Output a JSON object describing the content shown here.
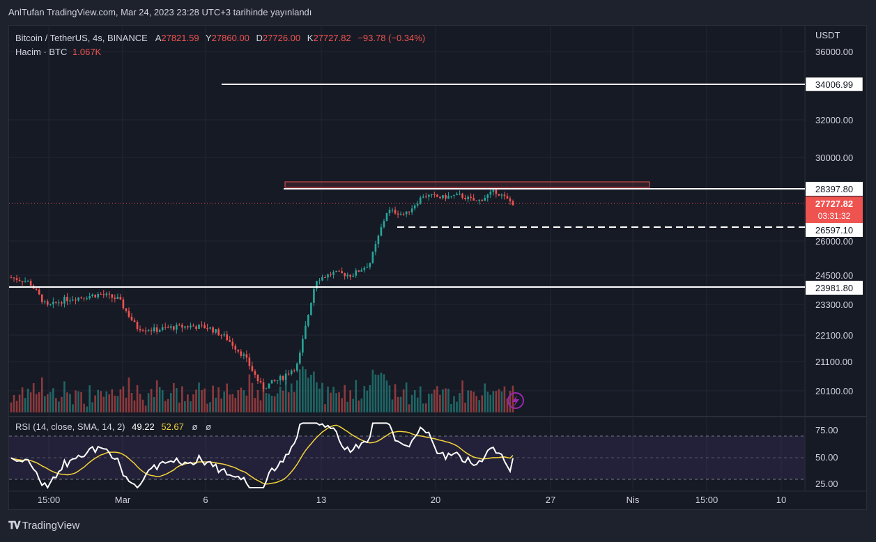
{
  "caption": "AnlTufan TradingView.com, Mar 24, 2023 23:28 UTC+3 tarihinde yayınlandı",
  "brand": "TradingView",
  "legend": {
    "symbol": "Bitcoin / TetherUS, 4s, BINANCE",
    "open_label": "A",
    "open": "27821.59",
    "high_label": "Y",
    "high": "27860.00",
    "low_label": "D",
    "low": "27726.00",
    "close_label": "K",
    "close": "27727.82",
    "change": "−93.78 (−0.34%)",
    "volume_label": "Hacim · BTC",
    "volume": "1.067K"
  },
  "rsi_legend": {
    "label": "RSI (14, close, SMA, 14, 2)",
    "value": "49.22",
    "sma": "52.67",
    "extra1": "ø",
    "extra2": "ø"
  },
  "price_axis": {
    "currency": "USDT",
    "ticks": [
      "36000.00",
      "32000.00",
      "30000.00",
      "26000.00",
      "24500.00",
      "23300.00",
      "22100.00",
      "21100.00",
      "20100.00"
    ],
    "line_labels": [
      "34006.99",
      "28397.80",
      "26597.10",
      "23981.80"
    ],
    "current_price": "27727.82",
    "countdown": "03:31:32"
  },
  "rsi_axis": {
    "ticks": [
      "75.00",
      "50.00",
      "25.00"
    ]
  },
  "time_axis": {
    "ticks": [
      "15:00",
      "Mar",
      "6",
      "13",
      "20",
      "27",
      "Nis",
      "15:00",
      "10"
    ]
  },
  "colors": {
    "up": "#26a69a",
    "down": "#ef5350",
    "rsi_line": "#ffffff",
    "rsi_sma": "#f5d33a",
    "bg": "#161a25",
    "band": "#7e57c2"
  },
  "chart_data": {
    "type": "candlestick",
    "symbol": "BTC/USDT",
    "timeframe": "4s",
    "price_range": [
      19000,
      37000
    ],
    "horizontal_levels": [
      34006.99,
      28397.8,
      26597.1,
      23981.8
    ],
    "resistance_zone": [
      28397.8,
      28700
    ],
    "last_price": 27727.82,
    "close_path": [
      {
        "x": "Feb 24",
        "y": 24400
      },
      {
        "x": "Feb 25",
        "y": 24200
      },
      {
        "x": "Feb 26",
        "y": 23200
      },
      {
        "x": "Feb 27",
        "y": 23500
      },
      {
        "x": "Feb 28",
        "y": 23600
      },
      {
        "x": "Mar 1",
        "y": 23700
      },
      {
        "x": "Mar 2",
        "y": 23500
      },
      {
        "x": "Mar 3",
        "y": 22400
      },
      {
        "x": "Mar 4",
        "y": 22300
      },
      {
        "x": "Mar 5",
        "y": 22400
      },
      {
        "x": "Mar 6",
        "y": 22450
      },
      {
        "x": "Mar 7",
        "y": 22400
      },
      {
        "x": "Mar 8",
        "y": 22000
      },
      {
        "x": "Mar 9",
        "y": 21300
      },
      {
        "x": "Mar 10",
        "y": 20200
      },
      {
        "x": "Mar 11",
        "y": 20500
      },
      {
        "x": "Mar 12",
        "y": 21000
      },
      {
        "x": "Mar 13",
        "y": 24300
      },
      {
        "x": "Mar 14",
        "y": 24600
      },
      {
        "x": "Mar 15",
        "y": 24500
      },
      {
        "x": "Mar 16",
        "y": 25000
      },
      {
        "x": "Mar 17",
        "y": 27400
      },
      {
        "x": "Mar 18",
        "y": 27200
      },
      {
        "x": "Mar 19",
        "y": 28100
      },
      {
        "x": "Mar 20",
        "y": 28000
      },
      {
        "x": "Mar 21",
        "y": 28100
      },
      {
        "x": "Mar 22",
        "y": 27800
      },
      {
        "x": "Mar 23",
        "y": 28300
      },
      {
        "x": "Mar 24",
        "y": 27727.82
      }
    ],
    "rsi": {
      "value": 49.22,
      "sma": 52.67,
      "levels": [
        70,
        50,
        30
      ]
    }
  }
}
